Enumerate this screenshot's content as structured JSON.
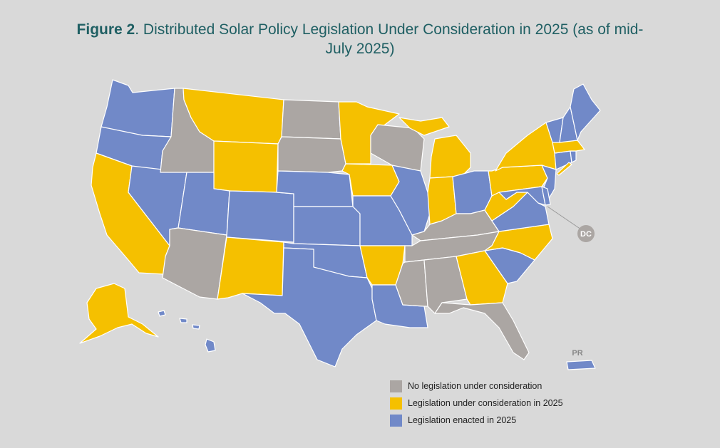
{
  "title": {
    "bold": "Figure 2",
    "rest": ". Distributed Solar Policy Legislation Under Consideration in 2025 (as of mid-July 2025)"
  },
  "colors": {
    "none": "#aba6a3",
    "considered": "#f5c000",
    "enacted": "#7189c8",
    "background": "#d9d9d9",
    "title": "#1f5f63"
  },
  "legend": [
    {
      "key": "none",
      "label": "No legislation under consideration"
    },
    {
      "key": "considered",
      "label": "Legislation under consideration in 2025"
    },
    {
      "key": "enacted",
      "label": "Legislation enacted in 2025"
    }
  ],
  "labels": {
    "dc": "DC",
    "pr": "PR"
  },
  "states": {
    "WA": "enacted",
    "OR": "enacted",
    "CA": "considered",
    "NV": "enacted",
    "ID": "none",
    "MT": "considered",
    "WY": "considered",
    "UT": "enacted",
    "AZ": "none",
    "CO": "enacted",
    "NM": "considered",
    "ND": "none",
    "SD": "none",
    "NE": "enacted",
    "KS": "enacted",
    "OK": "enacted",
    "TX": "enacted",
    "MN": "considered",
    "IA": "considered",
    "MO": "enacted",
    "AR": "considered",
    "LA": "enacted",
    "WI": "none",
    "IL": "enacted",
    "MI": "considered",
    "IN": "considered",
    "OH": "enacted",
    "KY": "none",
    "TN": "none",
    "MS": "none",
    "AL": "none",
    "GA": "considered",
    "FL": "none",
    "SC": "enacted",
    "NC": "considered",
    "VA": "enacted",
    "WV": "considered",
    "PA": "considered",
    "NY": "considered",
    "NJ": "enacted",
    "MD": "enacted",
    "DE": "enacted",
    "CT": "enacted",
    "RI": "enacted",
    "MA": "considered",
    "VT": "enacted",
    "NH": "enacted",
    "ME": "enacted",
    "AK": "considered",
    "HI": "enacted",
    "PR": "enacted",
    "DC": "none"
  }
}
